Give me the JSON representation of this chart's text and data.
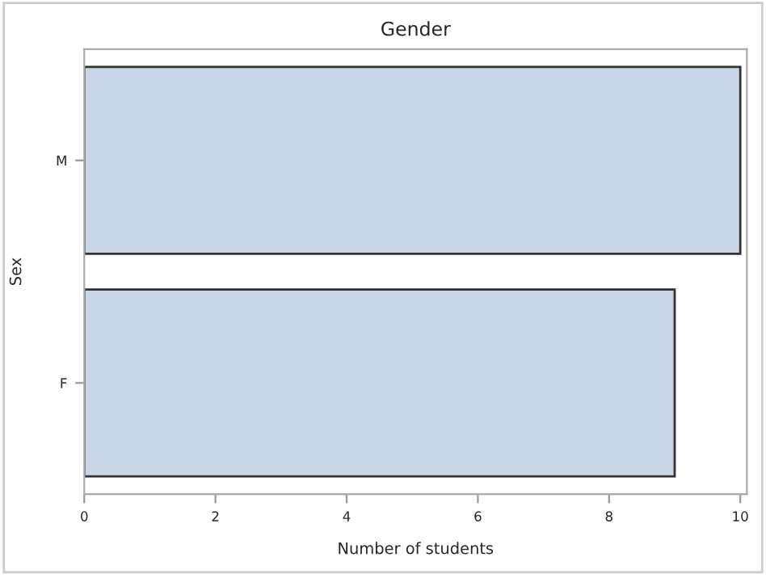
{
  "chart_data": {
    "type": "bar",
    "orientation": "horizontal",
    "title": "Gender",
    "xlabel": "Number of students",
    "ylabel": "Sex",
    "categories": [
      "M",
      "F"
    ],
    "values": [
      10,
      9
    ],
    "color": "#cad6e5",
    "xlim": [
      0,
      10.1
    ],
    "xticks": [
      0,
      2,
      4,
      6,
      8,
      10
    ],
    "grid": false,
    "legend": false
  }
}
